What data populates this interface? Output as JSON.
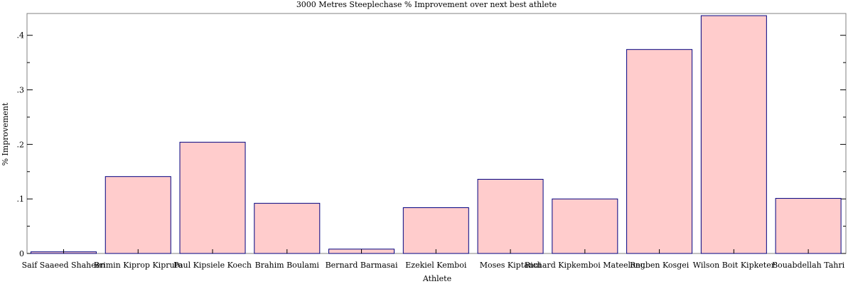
{
  "chart_data": {
    "type": "bar",
    "title": "3000 Metres Steeplechase % Improvement over next best athlete",
    "xlabel": "Athlete",
    "ylabel": "% Improvement",
    "ylim": [
      0,
      0.44
    ],
    "yticks": [
      0,
      0.1,
      0.2,
      0.3,
      0.4
    ],
    "ytick_labels": [
      "0",
      ".1",
      ".2",
      ".3",
      ".4"
    ],
    "categories": [
      "Saif Saaeed Shaheen",
      "Brimin Kiprop Kipruto",
      "Paul Kipsiele Koech",
      "Brahim Boulami",
      "Bernard Barmasai",
      "Ezekiel Kemboi",
      "Moses Kiptanui",
      "Richard Kipkemboi Mateelong",
      "Reuben Kosgei",
      "Wilson Boit Kipketer",
      "Bouabdellah Tahri"
    ],
    "values": [
      0.003,
      0.141,
      0.204,
      0.092,
      0.008,
      0.084,
      0.136,
      0.1,
      0.374,
      0.436,
      0.101
    ],
    "bar_fill": "#ffcccc",
    "bar_stroke": "#000080",
    "grid": false,
    "legend": "none"
  }
}
